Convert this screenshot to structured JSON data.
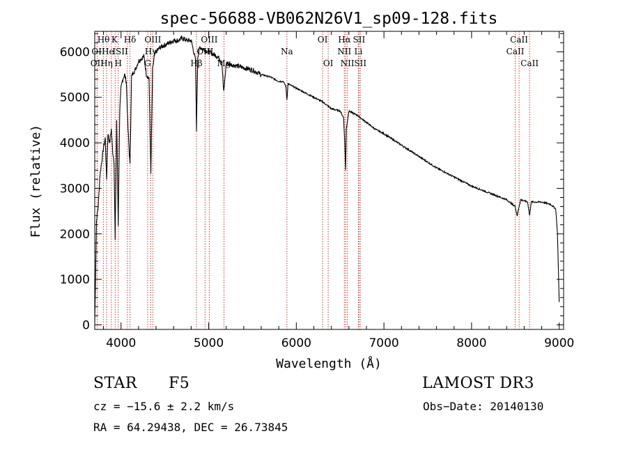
{
  "chart_data": {
    "type": "line",
    "title": "spec-56688-VB062N26V1_sp09-128.fits",
    "xlabel": "Wavelength (Å)",
    "ylabel": "Flux (relative)",
    "xlim": [
      3700,
      9050
    ],
    "ylim": [
      -100,
      6450
    ],
    "xticks": [
      4000,
      5000,
      6000,
      7000,
      8000,
      9000
    ],
    "yticks": [
      0,
      1000,
      2000,
      3000,
      4000,
      5000,
      6000
    ],
    "series": [
      {
        "name": "spectrum",
        "x": [
          3700,
          3720,
          3740,
          3760,
          3780,
          3800,
          3820,
          3835,
          3850,
          3870,
          3889,
          3905,
          3920,
          3933,
          3950,
          3968,
          3985,
          4000,
          4020,
          4040,
          4060,
          4080,
          4102,
          4120,
          4140,
          4160,
          4180,
          4200,
          4230,
          4260,
          4290,
          4320,
          4340,
          4360,
          4380,
          4400,
          4450,
          4500,
          4550,
          4600,
          4650,
          4700,
          4750,
          4800,
          4830,
          4850,
          4861,
          4875,
          4900,
          4950,
          5000,
          5050,
          5100,
          5150,
          5172,
          5200,
          5300,
          5400,
          5500,
          5600,
          5700,
          5800,
          5850,
          5880,
          5893,
          5905,
          5950,
          6000,
          6100,
          6200,
          6300,
          6400,
          6500,
          6540,
          6555,
          6563,
          6570,
          6600,
          6650,
          6700,
          6800,
          6900,
          7000,
          7200,
          7400,
          7600,
          7800,
          8000,
          8200,
          8400,
          8498,
          8520,
          8542,
          8560,
          8640,
          8662,
          8680,
          8800,
          8900,
          8960,
          8980,
          9000
        ],
        "values": [
          30,
          2300,
          2600,
          3300,
          3600,
          3900,
          4100,
          3200,
          4200,
          4000,
          4300,
          3800,
          3600,
          1850,
          4500,
          2200,
          4700,
          5200,
          5400,
          5500,
          5350,
          4300,
          3500,
          5450,
          5550,
          5600,
          5700,
          5800,
          5850,
          5900,
          5500,
          5400,
          3300,
          5600,
          5900,
          6000,
          6100,
          6150,
          6200,
          6250,
          6250,
          6300,
          6250,
          6250,
          6000,
          5800,
          4300,
          5900,
          6100,
          6050,
          6000,
          5950,
          5900,
          5800,
          5100,
          5750,
          5700,
          5650,
          5600,
          5500,
          5450,
          5350,
          5350,
          5250,
          4950,
          5300,
          5250,
          5200,
          5100,
          5000,
          4900,
          4750,
          4700,
          4550,
          3900,
          3400,
          4300,
          4700,
          4650,
          4600,
          4450,
          4300,
          4200,
          3950,
          3700,
          3450,
          3250,
          3050,
          2900,
          2750,
          2600,
          2400,
          2600,
          2750,
          2700,
          2400,
          2700,
          2700,
          2650,
          2550,
          2000,
          500
        ]
      }
    ],
    "lines": [
      {
        "name": "Hθ",
        "x": 3798
      },
      {
        "name": "OII",
        "x": 3727
      },
      {
        "name": "Hη",
        "x": 3835
      },
      {
        "name": "CaII K",
        "x": 3933
      },
      {
        "name": "HeI",
        "x": 3889
      },
      {
        "name": "CaII H",
        "x": 3968
      },
      {
        "name": "Hδ",
        "x": 4102
      },
      {
        "name": "SII",
        "x": 4072
      },
      {
        "name": "OIII",
        "x": 4363
      },
      {
        "name": "Hγ",
        "x": 4340
      },
      {
        "name": "G",
        "x": 4304
      },
      {
        "name": "Hβ",
        "x": 4861
      },
      {
        "name": "OIII",
        "x": 4959
      },
      {
        "name": "OIII",
        "x": 5007
      },
      {
        "name": "Mg",
        "x": 5175
      },
      {
        "name": "Na",
        "x": 5893
      },
      {
        "name": "OI",
        "x": 6300
      },
      {
        "name": "OI",
        "x": 6364
      },
      {
        "name": "Hα",
        "x": 6563
      },
      {
        "name": "NII",
        "x": 6548
      },
      {
        "name": "NII",
        "x": 6583
      },
      {
        "name": "SII",
        "x": 6716
      },
      {
        "name": "SII",
        "x": 6731
      },
      {
        "name": "Li",
        "x": 6708
      },
      {
        "name": "CaII",
        "x": 8498
      },
      {
        "name": "CaII",
        "x": 8542
      },
      {
        "name": "CaII",
        "x": 8662
      }
    ]
  },
  "info": {
    "object_type": "STAR",
    "subclass": "F5",
    "survey": "LAMOST DR3",
    "cz": "cz = −15.6 ± 2.2 km/s",
    "obs_date": "Obs−Date: 20140130",
    "coords": "RA =  64.29438, DEC =  26.73845"
  },
  "labels": {
    "row1": [
      {
        "text": "Hθ",
        "x": 3800
      },
      {
        "text": "K",
        "x": 3925
      },
      {
        "text": "Hδ",
        "x": 4102
      },
      {
        "text": "OIII",
        "x": 4363
      },
      {
        "text": "OIII",
        "x": 5007
      },
      {
        "text": "OI",
        "x": 6300
      },
      {
        "text": "Hα",
        "x": 6550
      },
      {
        "text": "SII",
        "x": 6716
      },
      {
        "text": "CaII",
        "x": 8542
      }
    ],
    "row2": [
      {
        "text": "OII",
        "x": 3740
      },
      {
        "text": "He",
        "x": 3850
      },
      {
        "text": "ISII",
        "x": 3990
      },
      {
        "text": "Hγ",
        "x": 4340
      },
      {
        "text": "OIII",
        "x": 4959
      },
      {
        "text": "Na",
        "x": 5893
      },
      {
        "text": "NII",
        "x": 6548
      },
      {
        "text": "Li",
        "x": 6708
      },
      {
        "text": "CaII",
        "x": 8498
      }
    ],
    "row3": [
      {
        "text": "OII",
        "x": 3727
      },
      {
        "text": "Hη",
        "x": 3835
      },
      {
        "text": "H",
        "x": 3968
      },
      {
        "text": "G",
        "x": 4304
      },
      {
        "text": "Hβ",
        "x": 4861
      },
      {
        "text": "Mg",
        "x": 5175
      },
      {
        "text": "OI",
        "x": 6364
      },
      {
        "text": "NII",
        "x": 6583
      },
      {
        "text": "SII",
        "x": 6731
      },
      {
        "text": "CaII",
        "x": 8662
      }
    ]
  }
}
